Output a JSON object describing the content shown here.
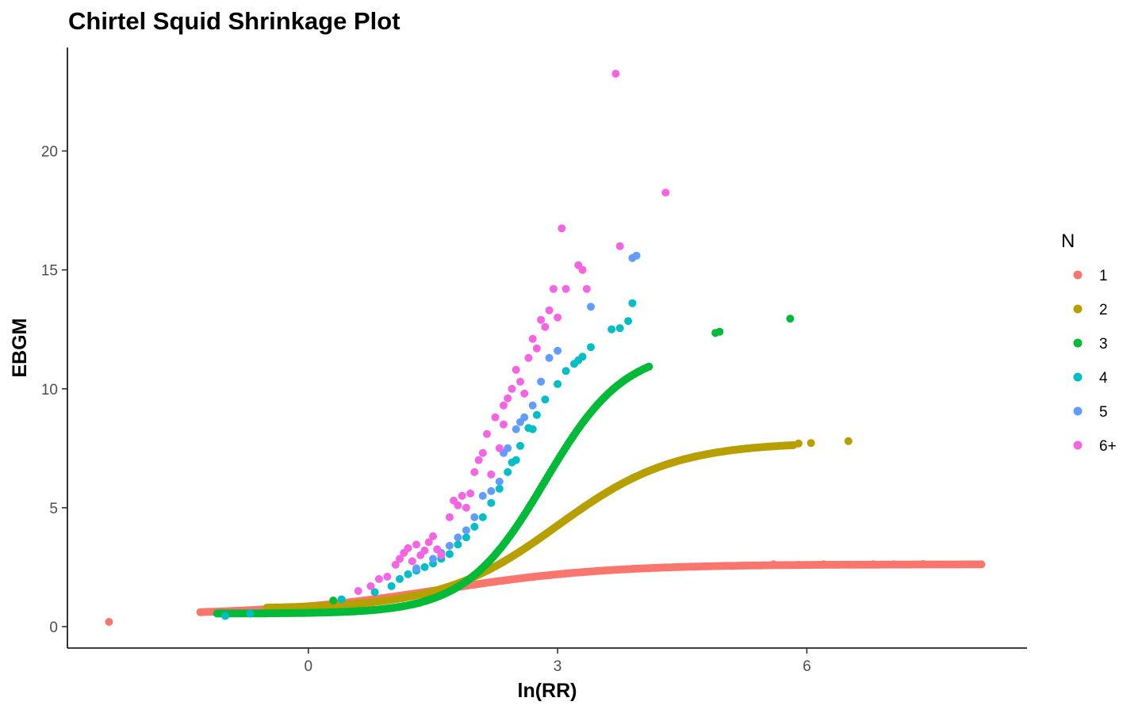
{
  "chart_data": {
    "type": "scatter",
    "title": "Chirtel Squid Shrinkage Plot",
    "xlabel": "ln(RR)",
    "ylabel": "EBGM",
    "xlim": [
      -2.9,
      8.65
    ],
    "ylim": [
      -0.9,
      24.35
    ],
    "x_ticks": [
      0,
      3,
      6
    ],
    "y_ticks": [
      0,
      5,
      10,
      15,
      20
    ],
    "grid": false,
    "legend": {
      "title": "N",
      "placement": "right"
    },
    "series": [
      {
        "name": "1",
        "color": "#F8766D",
        "curve": {
          "x_start": -1.3,
          "x_end": 8.1,
          "step": 0.025,
          "lo": 0.5,
          "hi": 2.62,
          "mid": 1.6,
          "scale": 1.0
        },
        "points": [
          [
            -2.4,
            0.2
          ],
          [
            5.6,
            2.62
          ],
          [
            5.9,
            2.6
          ],
          [
            6.2,
            2.62
          ],
          [
            6.5,
            2.6
          ],
          [
            6.8,
            2.62
          ],
          [
            7.05,
            2.62
          ],
          [
            7.4,
            2.63
          ],
          [
            8.1,
            2.62
          ]
        ]
      },
      {
        "name": "2",
        "color": "#B79F00",
        "curve": {
          "x_start": -0.5,
          "x_end": 5.85,
          "step": 0.02,
          "lo": 0.75,
          "hi": 7.75,
          "mid": 3.0,
          "scale": 0.7
        },
        "points": [
          [
            5.9,
            7.7
          ],
          [
            6.05,
            7.72
          ],
          [
            6.5,
            7.8
          ]
        ]
      },
      {
        "name": "3",
        "color": "#00BA38",
        "curve": {
          "x_start": -1.1,
          "x_end": 4.1,
          "step": 0.02,
          "lo": 0.55,
          "hi": 11.7,
          "mid": 2.85,
          "scale": 0.48
        },
        "points": [
          [
            0.3,
            1.1
          ],
          [
            4.9,
            12.35
          ],
          [
            4.95,
            12.4
          ],
          [
            5.8,
            12.95
          ]
        ]
      },
      {
        "name": "4",
        "color": "#00BFC4",
        "points": [
          [
            -1.0,
            0.45
          ],
          [
            -0.7,
            0.55
          ],
          [
            0.4,
            1.15
          ],
          [
            0.8,
            1.45
          ],
          [
            1.0,
            1.7
          ],
          [
            1.1,
            2.0
          ],
          [
            1.2,
            2.2
          ],
          [
            1.3,
            2.35
          ],
          [
            1.4,
            2.5
          ],
          [
            1.5,
            2.65
          ],
          [
            1.6,
            2.85
          ],
          [
            1.7,
            3.05
          ],
          [
            1.8,
            3.45
          ],
          [
            1.9,
            3.75
          ],
          [
            2.0,
            4.2
          ],
          [
            2.1,
            4.6
          ],
          [
            2.2,
            5.2
          ],
          [
            2.3,
            5.8
          ],
          [
            2.4,
            6.5
          ],
          [
            2.45,
            6.9
          ],
          [
            2.55,
            7.6
          ],
          [
            2.65,
            8.35
          ],
          [
            2.75,
            8.9
          ],
          [
            2.85,
            9.55
          ],
          [
            3.0,
            10.2
          ],
          [
            3.1,
            10.75
          ],
          [
            3.2,
            11.05
          ],
          [
            3.3,
            11.35
          ],
          [
            3.4,
            11.75
          ],
          [
            3.65,
            12.5
          ],
          [
            3.85,
            12.85
          ],
          [
            3.9,
            13.6
          ],
          [
            3.75,
            12.55
          ],
          [
            3.25,
            11.2
          ],
          [
            2.7,
            8.3
          ],
          [
            2.5,
            7.0
          ]
        ]
      },
      {
        "name": "5",
        "color": "#619CFF",
        "points": [
          [
            1.3,
            2.45
          ],
          [
            1.5,
            2.85
          ],
          [
            1.7,
            3.4
          ],
          [
            1.8,
            3.75
          ],
          [
            1.9,
            4.05
          ],
          [
            2.0,
            4.6
          ],
          [
            2.1,
            5.5
          ],
          [
            2.2,
            5.7
          ],
          [
            2.3,
            6.1
          ],
          [
            2.4,
            7.5
          ],
          [
            2.5,
            8.3
          ],
          [
            2.6,
            8.8
          ],
          [
            2.7,
            9.3
          ],
          [
            2.8,
            10.3
          ],
          [
            2.9,
            11.3
          ],
          [
            3.0,
            11.6
          ],
          [
            3.4,
            13.45
          ],
          [
            3.9,
            15.5
          ],
          [
            3.95,
            15.6
          ],
          [
            2.55,
            8.6
          ],
          [
            2.35,
            7.3
          ],
          [
            1.6,
            3.1
          ]
        ]
      },
      {
        "name": "6+",
        "color": "#F564E3",
        "points": [
          [
            0.6,
            1.5
          ],
          [
            0.75,
            1.7
          ],
          [
            0.85,
            2.0
          ],
          [
            0.95,
            2.1
          ],
          [
            1.05,
            2.6
          ],
          [
            1.1,
            2.85
          ],
          [
            1.15,
            3.1
          ],
          [
            1.2,
            3.3
          ],
          [
            1.25,
            2.75
          ],
          [
            1.3,
            3.45
          ],
          [
            1.35,
            3.0
          ],
          [
            1.4,
            3.2
          ],
          [
            1.45,
            3.55
          ],
          [
            1.5,
            3.8
          ],
          [
            1.55,
            3.25
          ],
          [
            1.6,
            3.0
          ],
          [
            1.7,
            4.6
          ],
          [
            1.75,
            5.3
          ],
          [
            1.8,
            5.1
          ],
          [
            1.85,
            5.5
          ],
          [
            1.9,
            5.0
          ],
          [
            2.0,
            6.5
          ],
          [
            2.05,
            7.0
          ],
          [
            2.1,
            7.3
          ],
          [
            2.25,
            8.8
          ],
          [
            2.3,
            7.5
          ],
          [
            2.35,
            9.3
          ],
          [
            2.4,
            9.6
          ],
          [
            2.45,
            10.0
          ],
          [
            2.5,
            10.8
          ],
          [
            2.55,
            10.3
          ],
          [
            2.6,
            9.8
          ],
          [
            2.65,
            11.3
          ],
          [
            2.7,
            12.1
          ],
          [
            2.75,
            11.7
          ],
          [
            2.8,
            12.9
          ],
          [
            2.85,
            12.6
          ],
          [
            2.9,
            13.3
          ],
          [
            2.95,
            14.2
          ],
          [
            3.0,
            13.0
          ],
          [
            3.05,
            16.75
          ],
          [
            3.1,
            14.2
          ],
          [
            3.25,
            15.2
          ],
          [
            3.3,
            15.0
          ],
          [
            3.35,
            14.2
          ],
          [
            3.7,
            23.25
          ],
          [
            3.75,
            16.0
          ],
          [
            4.3,
            18.25
          ],
          [
            2.2,
            6.4
          ],
          [
            1.95,
            5.6
          ],
          [
            2.15,
            8.1
          ],
          [
            2.35,
            8.5
          ]
        ]
      }
    ]
  }
}
